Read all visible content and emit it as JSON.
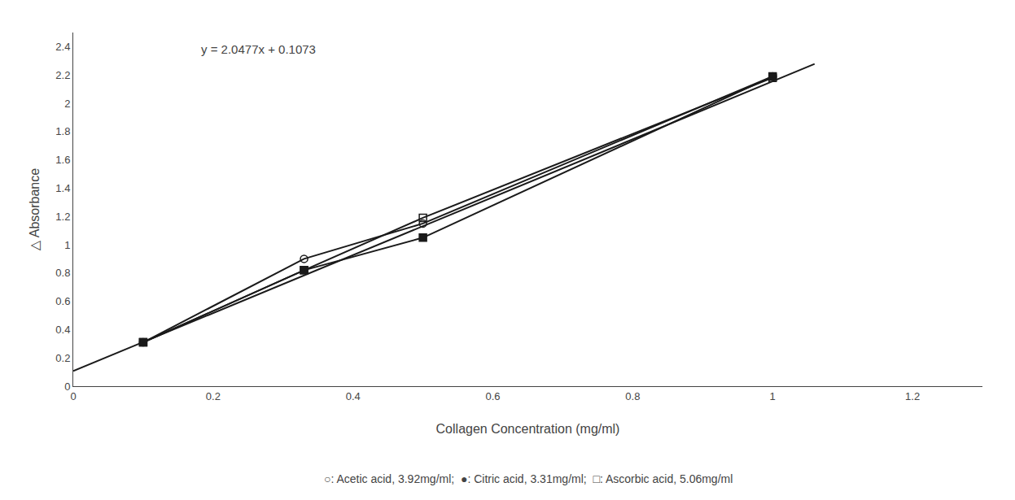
{
  "chart_data": {
    "type": "line",
    "xlabel": "Collagen Concentration (mg/ml)",
    "ylabel": "△ Absorbance",
    "xlim": [
      0,
      1.3
    ],
    "ylim": [
      0,
      2.5
    ],
    "xticks": [
      0,
      0.2,
      0.4,
      0.6,
      0.8,
      1,
      1.2
    ],
    "yticks": [
      0,
      0.2,
      0.4,
      0.6,
      0.8,
      1,
      1.2,
      1.4,
      1.6,
      1.8,
      2,
      2.2,
      2.4
    ],
    "grid": false,
    "series": [
      {
        "x": [
          0,
          1.06
        ],
        "values": [
          0.1073,
          2.277862
        ],
        "color": "#1a1a1a",
        "line_style": "solid"
      },
      {
        "x": [
          0.1,
          0.33,
          0.5,
          1.0
        ],
        "values": [
          0.31,
          0.9,
          1.15,
          2.19
        ],
        "color": "#1a1a1a",
        "marker": "circle-open",
        "line_style": "solid"
      },
      {
        "x": [
          0.1,
          0.33,
          0.5,
          1.0
        ],
        "values": [
          0.31,
          0.82,
          1.05,
          2.19
        ],
        "color": "#1a1a1a",
        "marker": "square",
        "line_style": "solid"
      },
      {
        "x": [
          0.1,
          0.33,
          0.5,
          1.0
        ],
        "values": [
          0.31,
          0.82,
          1.19,
          2.18
        ],
        "color": "#1a1a1a",
        "marker": "square-open",
        "line_style": "solid"
      }
    ],
    "annotations": [
      {
        "text": "y = 2.0477x + 0.1073",
        "x": 0.18,
        "y": 2.38
      },
      {
        "text": "○: Acetic acid, 3.92mg/ml;  ●: Citric acid, 3.31mg/ml;  □: Ascorbic acid, 5.06mg/ml"
      }
    ]
  }
}
